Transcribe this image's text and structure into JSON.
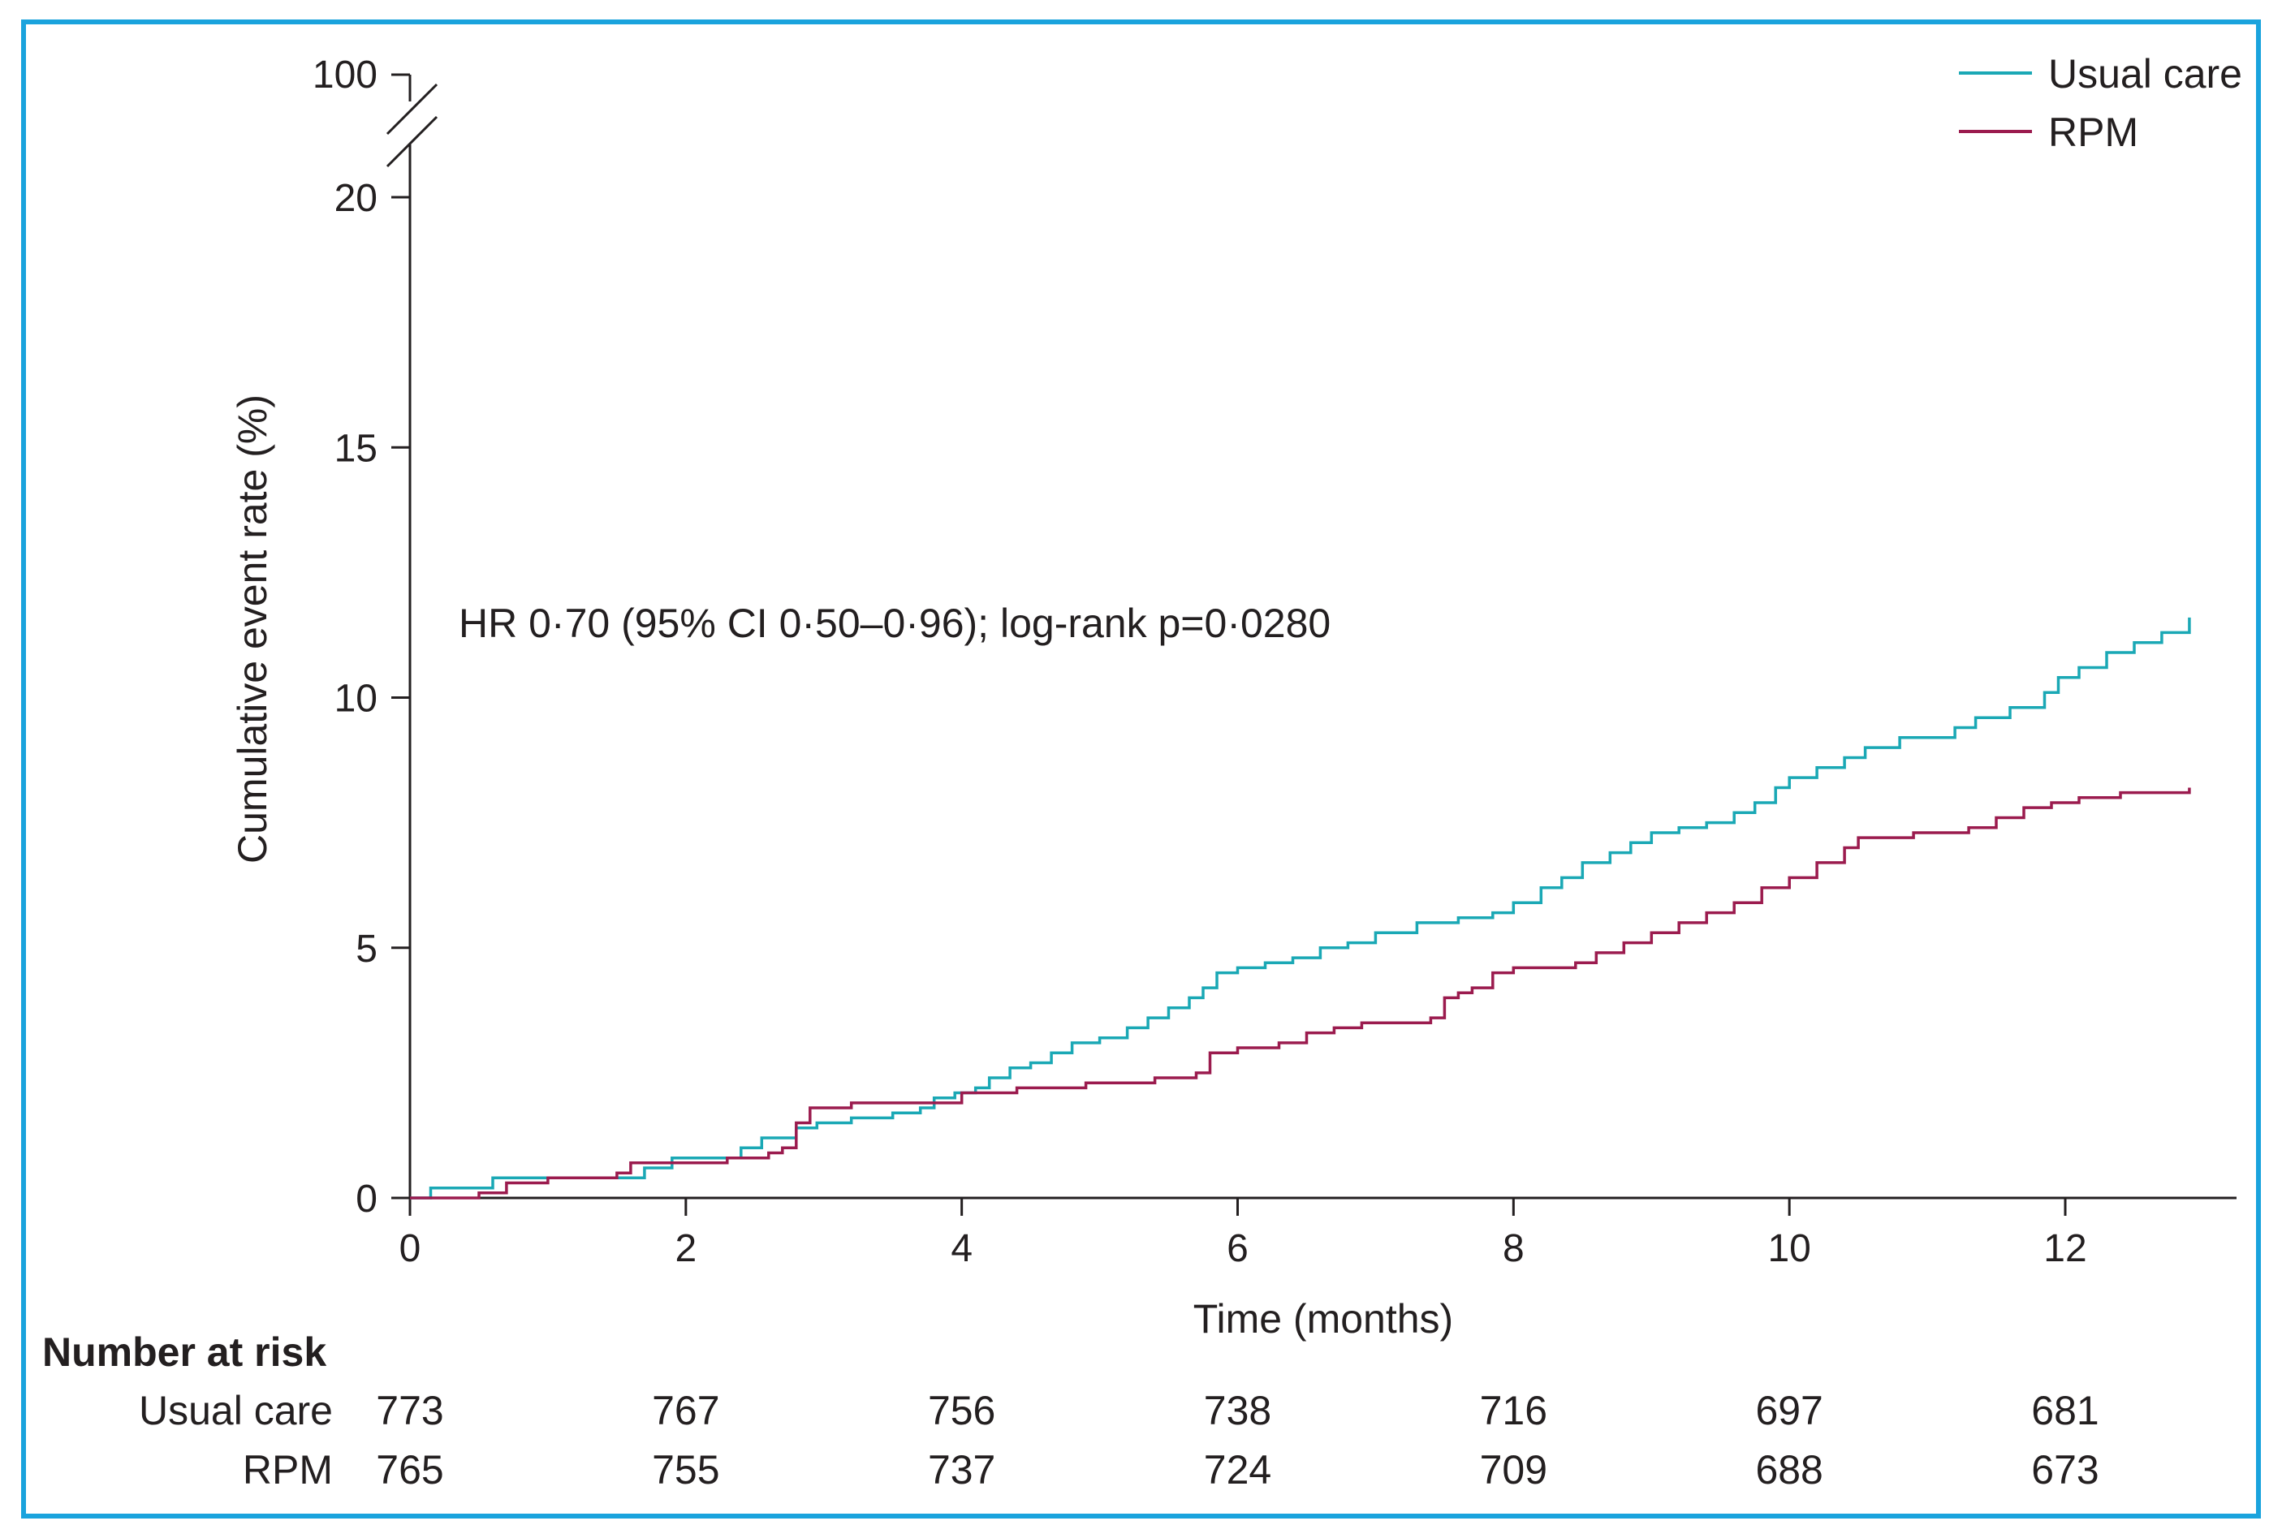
{
  "chart_data": {
    "type": "line",
    "subtype": "kaplan-meier-cumulative-incidence",
    "ylabel": "Cumulative event rate (%)",
    "xlabel": "Time (months)",
    "x_ticks": [
      "0",
      "2",
      "4",
      "6",
      "8",
      "10",
      "12"
    ],
    "x_tick_values": [
      0,
      2,
      4,
      6,
      8,
      10,
      12
    ],
    "y_ticks": [
      "0",
      "5",
      "10",
      "15",
      "20"
    ],
    "y_tick_values": [
      0,
      5,
      10,
      15,
      20
    ],
    "y_break_label": "100",
    "xlim": [
      0,
      13.2
    ],
    "ylim": [
      0,
      20
    ],
    "annotation": "HR 0·70 (95% CI 0·50–0·96); log-rank p=0·0280",
    "legend": [
      "Usual care",
      "RPM"
    ],
    "colors": {
      "Usual care": "#1aa8b5",
      "RPM": "#9b1b4e"
    },
    "series": [
      {
        "name": "Usual care",
        "x": [
          0,
          0.15,
          0.6,
          1.0,
          1.5,
          1.7,
          1.9,
          2.1,
          2.4,
          2.55,
          2.8,
          2.95,
          3.2,
          3.5,
          3.7,
          3.8,
          3.95,
          4.1,
          4.2,
          4.35,
          4.5,
          4.65,
          4.8,
          5.0,
          5.2,
          5.35,
          5.5,
          5.65,
          5.75,
          5.85,
          6.0,
          6.2,
          6.4,
          6.6,
          6.8,
          7.0,
          7.3,
          7.6,
          7.85,
          8.0,
          8.2,
          8.35,
          8.5,
          8.7,
          8.85,
          9.0,
          9.2,
          9.4,
          9.6,
          9.75,
          9.9,
          10.0,
          10.2,
          10.4,
          10.55,
          10.8,
          11.0,
          11.2,
          11.35,
          11.6,
          11.75,
          11.85,
          11.95,
          12.1,
          12.3,
          12.5,
          12.7,
          12.9
        ],
        "y": [
          0,
          0.2,
          0.4,
          0.4,
          0.4,
          0.6,
          0.8,
          0.8,
          1.0,
          1.2,
          1.4,
          1.5,
          1.6,
          1.7,
          1.8,
          2.0,
          2.1,
          2.2,
          2.4,
          2.6,
          2.7,
          2.9,
          3.1,
          3.2,
          3.4,
          3.6,
          3.8,
          4.0,
          4.2,
          4.5,
          4.6,
          4.7,
          4.8,
          5.0,
          5.1,
          5.3,
          5.5,
          5.6,
          5.7,
          5.9,
          6.2,
          6.4,
          6.7,
          6.9,
          7.1,
          7.3,
          7.4,
          7.5,
          7.7,
          7.9,
          8.2,
          8.4,
          8.6,
          8.8,
          9.0,
          9.2,
          9.2,
          9.4,
          9.6,
          9.8,
          9.8,
          10.1,
          10.4,
          10.6,
          10.9,
          11.1,
          11.3,
          11.6
        ]
      },
      {
        "name": "RPM",
        "x": [
          0,
          0.5,
          0.7,
          1.0,
          1.5,
          1.6,
          1.9,
          2.3,
          2.6,
          2.7,
          2.8,
          2.9,
          3.2,
          3.5,
          3.7,
          4.0,
          4.4,
          4.9,
          5.4,
          5.7,
          5.8,
          6.0,
          6.3,
          6.5,
          6.7,
          6.9,
          7.1,
          7.4,
          7.5,
          7.6,
          7.7,
          7.85,
          8.0,
          8.2,
          8.45,
          8.6,
          8.8,
          9.0,
          9.2,
          9.4,
          9.6,
          9.8,
          10.0,
          10.2,
          10.4,
          10.5,
          10.7,
          10.9,
          11.1,
          11.3,
          11.5,
          11.7,
          11.9,
          12.1,
          12.4,
          12.6,
          12.9
        ],
        "y": [
          0,
          0.1,
          0.3,
          0.4,
          0.5,
          0.7,
          0.7,
          0.8,
          0.9,
          1.0,
          1.5,
          1.8,
          1.9,
          1.9,
          1.9,
          2.1,
          2.2,
          2.3,
          2.4,
          2.5,
          2.9,
          3.0,
          3.1,
          3.3,
          3.4,
          3.5,
          3.5,
          3.6,
          4.0,
          4.1,
          4.2,
          4.5,
          4.6,
          4.6,
          4.7,
          4.9,
          5.1,
          5.3,
          5.5,
          5.7,
          5.9,
          6.2,
          6.4,
          6.7,
          7.0,
          7.2,
          7.2,
          7.3,
          7.3,
          7.4,
          7.6,
          7.8,
          7.9,
          8.0,
          8.1,
          8.1,
          8.2
        ]
      }
    ],
    "number_at_risk": {
      "title": "Number at risk",
      "rows": [
        {
          "label": "Usual care",
          "values": [
            "773",
            "767",
            "756",
            "738",
            "716",
            "697",
            "681"
          ]
        },
        {
          "label": "RPM",
          "values": [
            "765",
            "755",
            "737",
            "724",
            "709",
            "688",
            "673"
          ]
        }
      ]
    }
  }
}
